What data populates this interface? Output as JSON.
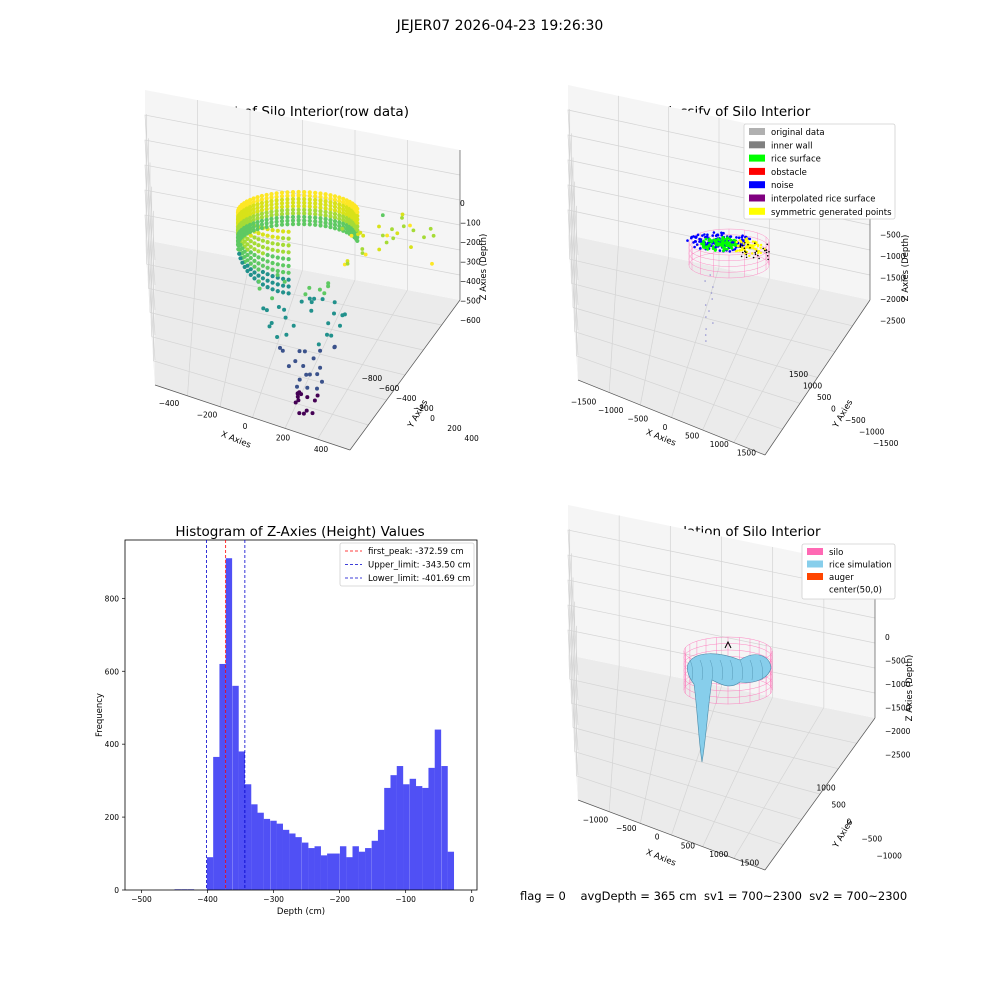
{
  "figure": {
    "suptitle": "JEJER07 2026-04-23 19:26:30",
    "footer": "flag = 0    avgDepth = 365 cm  sv1 = 700~2300  sv2 = 700~2300"
  },
  "colors": {
    "histogram_bars": "#5050f5",
    "first_peak_line": "#ff0000",
    "limit_lines": "#0000cc",
    "silo_wire": "#ff69b4",
    "rice_simulation": "#87ceeb",
    "auger": "#ff4500"
  },
  "chart_data": [
    {
      "type": "scatter",
      "title": "3D Plot of Silo Interior(row data)",
      "xlabel": "X Axies",
      "ylabel": "Y Axies",
      "zlabel": "Z Axies (Depth)",
      "x_ticks": [
        "−400",
        "−200",
        "0",
        "200",
        "400"
      ],
      "y_ticks": [
        "−800",
        "−600",
        "−400",
        "−200",
        "0",
        "200",
        "400"
      ],
      "z_ticks": [
        "0",
        "−100",
        "−200",
        "−300",
        "−400",
        "−500",
        "−600"
      ],
      "colormap": "viridis"
    },
    {
      "type": "scatter",
      "title": "3D classify of Silo Interior",
      "xlabel": "X Axies",
      "ylabel": "Y Axies",
      "zlabel": "Z Axies (Depth)",
      "x_ticks": [
        "−1500",
        "−1000",
        "−500",
        "0",
        "500",
        "1000",
        "1500"
      ],
      "y_ticks": [
        "−1500",
        "−1000",
        "−500",
        "0",
        "500",
        "1000",
        "1500"
      ],
      "z_ticks": [
        "0",
        "−500",
        "−1000",
        "−1500",
        "−2000",
        "−2500"
      ],
      "legend": [
        {
          "label": "original data",
          "color": "#b0b0b0"
        },
        {
          "label": "inner wall",
          "color": "#808080"
        },
        {
          "label": "rice surface",
          "color": "#00ff00"
        },
        {
          "label": "obstacle",
          "color": "#ff0000"
        },
        {
          "label": "noise",
          "color": "#0000ff"
        },
        {
          "label": "interpolated rice surface",
          "color": "#800080"
        },
        {
          "label": "symmetric generated points",
          "color": "#ffff00"
        }
      ]
    },
    {
      "type": "bar",
      "title": "Histogram of Z-Axies (Height) Values",
      "xlabel": "Depth (cm)",
      "ylabel": "Frequency",
      "xlim": [
        -525,
        8
      ],
      "ylim": [
        0,
        960
      ],
      "x_ticks": [
        -500,
        -400,
        -300,
        -200,
        -100,
        0
      ],
      "y_ticks": [
        0,
        200,
        400,
        600,
        800
      ],
      "bin_width": 9.7,
      "bins_start": [
        -450,
        -440,
        -430,
        -401,
        -391.5,
        -382,
        -372.5,
        -362.5,
        -353,
        -343.5,
        -334,
        -324.5,
        -315,
        -305,
        -295.5,
        -286,
        -276.5,
        -267,
        -257,
        -247.5,
        -238,
        -228.5,
        -219,
        -209.5,
        -199.5,
        -190,
        -180.5,
        -171,
        -161.5,
        -151.5,
        -142,
        -132.5,
        -123,
        -113.5,
        -104,
        -94,
        -84.5,
        -75,
        -65.5,
        -56,
        -46,
        -36.5,
        -27,
        -17.5
      ],
      "values": [
        2,
        2,
        2,
        90,
        365,
        620,
        910,
        560,
        380,
        290,
        235,
        212,
        195,
        190,
        182,
        165,
        155,
        145,
        130,
        115,
        120,
        95,
        100,
        100,
        120,
        90,
        120,
        105,
        115,
        135,
        165,
        280,
        315,
        340,
        290,
        305,
        285,
        280,
        335,
        440,
        340,
        105,
        0,
        0
      ],
      "vlines": [
        {
          "label": "first_peak: -372.59 cm",
          "x": -372.59,
          "style": "dashed",
          "color": "#ff0000"
        },
        {
          "label": "Upper_limit: -343.50 cm",
          "x": -343.5,
          "style": "dashed",
          "color": "#0000cc"
        },
        {
          "label": "Lower_limit: -401.69 cm",
          "x": -401.69,
          "style": "dashed",
          "color": "#0000cc"
        }
      ]
    },
    {
      "type": "area",
      "title": "3D simulation of Silo Interior",
      "xlabel": "X Axies",
      "ylabel": "Y Axies",
      "zlabel": "Z Axies (Depth)",
      "x_ticks": [
        "−1000",
        "−500",
        "0",
        "500",
        "1000",
        "1500"
      ],
      "y_ticks": [
        "−1000",
        "−500",
        "0",
        "500",
        "1000"
      ],
      "z_ticks": [
        "0",
        "−500",
        "−1000",
        "−1500",
        "−2000",
        "−2500"
      ],
      "legend": [
        {
          "label": "silo",
          "color": "#ff69b4"
        },
        {
          "label": "rice simulation",
          "color": "#87ceeb"
        },
        {
          "label": "auger",
          "color": "#ff4500"
        },
        {
          "label": "center(50,0)",
          "color": ""
        }
      ]
    }
  ]
}
